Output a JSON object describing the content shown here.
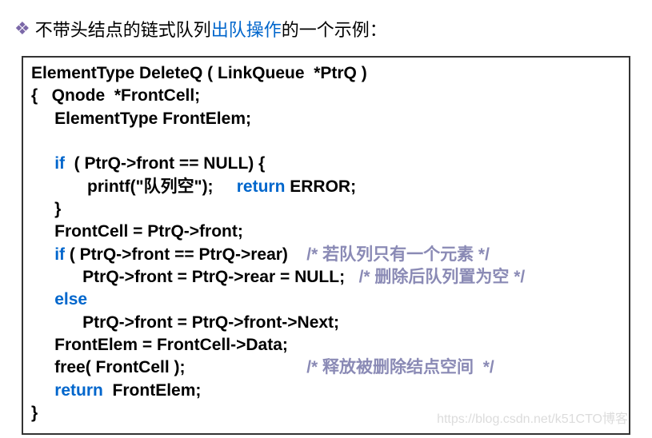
{
  "title": {
    "bullet": "❖",
    "pre": "不带头结点的链式队列",
    "highlight": "出队操作",
    "post": "的一个示例："
  },
  "code": {
    "l1_a": "ElementType DeleteQ ( LinkQueue  *PtrQ )",
    "l2_a": "{   Qnode  *FrontCell; ",
    "l3_a": "     ElementType FrontElem;",
    "l4_a": "     ",
    "l5_kw": "if",
    "l5_b": "  ( PtrQ->front == NULL) {",
    "l6_a": "            printf(\"队列空\");     ",
    "l6_kw": "return",
    "l6_b": " ERROR;",
    "l7_a": "     }",
    "l8_a": "     FrontCell = PtrQ->front; ",
    "l9_kw": "if",
    "l9_a": " ( PtrQ->front == PtrQ->rear)    ",
    "l9_c": "/* 若队列只有一个元素 */",
    "l10_a": "           PtrQ->front = PtrQ->rear = NULL;   ",
    "l10_c": "/* 删除后队列置为空 */",
    "l11_kw": "else",
    "l11_a": "     ",
    "l12_a": "           PtrQ->front = PtrQ->front->Next;",
    "l13_a": "     FrontElem = FrontCell->Data;",
    "l14_a": "     free( FrontCell );                          ",
    "l14_c": "/* 释放被删除结点空间  */",
    "l15_kw": "return",
    "l15_a": "  FrontElem;",
    "l16_a": "}"
  },
  "watermark": "https://blog.csdn.net/k51CTO博客"
}
